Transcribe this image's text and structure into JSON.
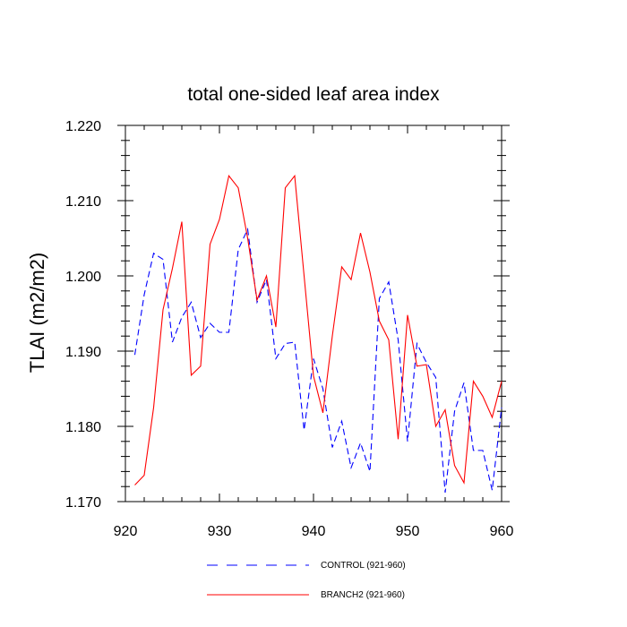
{
  "chart_data": {
    "type": "line",
    "title": "total one-sided leaf area index",
    "xlabel": "",
    "ylabel": "TLAI  (m2/m2)",
    "xlim": [
      920,
      960
    ],
    "ylim": [
      1.17,
      1.22
    ],
    "x_ticks": [
      920,
      930,
      940,
      950,
      960
    ],
    "y_ticks": [
      1.17,
      1.18,
      1.19,
      1.2,
      1.21,
      1.22
    ],
    "x_tick_labels": [
      "920",
      "930",
      "940",
      "950",
      "960"
    ],
    "y_tick_labels": [
      "1.170",
      "1.180",
      "1.190",
      "1.200",
      "1.210",
      "1.220"
    ],
    "grid": false,
    "legend_position": "bottom",
    "x": [
      921,
      922,
      923,
      924,
      925,
      926,
      927,
      928,
      929,
      930,
      931,
      932,
      933,
      934,
      935,
      936,
      937,
      938,
      939,
      940,
      941,
      942,
      943,
      944,
      945,
      946,
      947,
      948,
      949,
      950,
      951,
      952,
      953,
      954,
      955,
      956,
      957,
      958,
      959,
      960
    ],
    "series": [
      {
        "name": "CONTROL (921-960)",
        "color": "#0000ff",
        "dash": "dashed",
        "values": [
          1.1895,
          1.1975,
          1.203,
          1.2022,
          1.1912,
          1.1945,
          1.1965,
          1.1918,
          1.1937,
          1.1925,
          1.1925,
          1.2035,
          1.2062,
          1.1965,
          1.1995,
          1.189,
          1.191,
          1.1912,
          1.1795,
          1.189,
          1.185,
          1.1772,
          1.1807,
          1.1745,
          1.1778,
          1.174,
          1.197,
          1.1992,
          1.1915,
          1.178,
          1.191,
          1.1885,
          1.1865,
          1.1712,
          1.182,
          1.1858,
          1.1768,
          1.1768,
          1.1715,
          1.1825
        ]
      },
      {
        "name": "BRANCH2 (921-960)",
        "color": "#ff0000",
        "dash": "solid",
        "values": [
          1.1722,
          1.1735,
          1.1825,
          1.1955,
          1.201,
          1.2072,
          1.1868,
          1.188,
          1.2042,
          1.2075,
          1.2133,
          1.2117,
          1.205,
          1.1968,
          1.2,
          1.1932,
          1.2117,
          1.2133,
          1.2,
          1.1867,
          1.1818,
          1.192,
          1.2012,
          1.1995,
          1.2057,
          1.2005,
          1.194,
          1.1915,
          1.1783,
          1.1948,
          1.188,
          1.1882,
          1.18,
          1.1822,
          1.1748,
          1.1725,
          1.186,
          1.184,
          1.1812,
          1.186
        ]
      }
    ]
  }
}
